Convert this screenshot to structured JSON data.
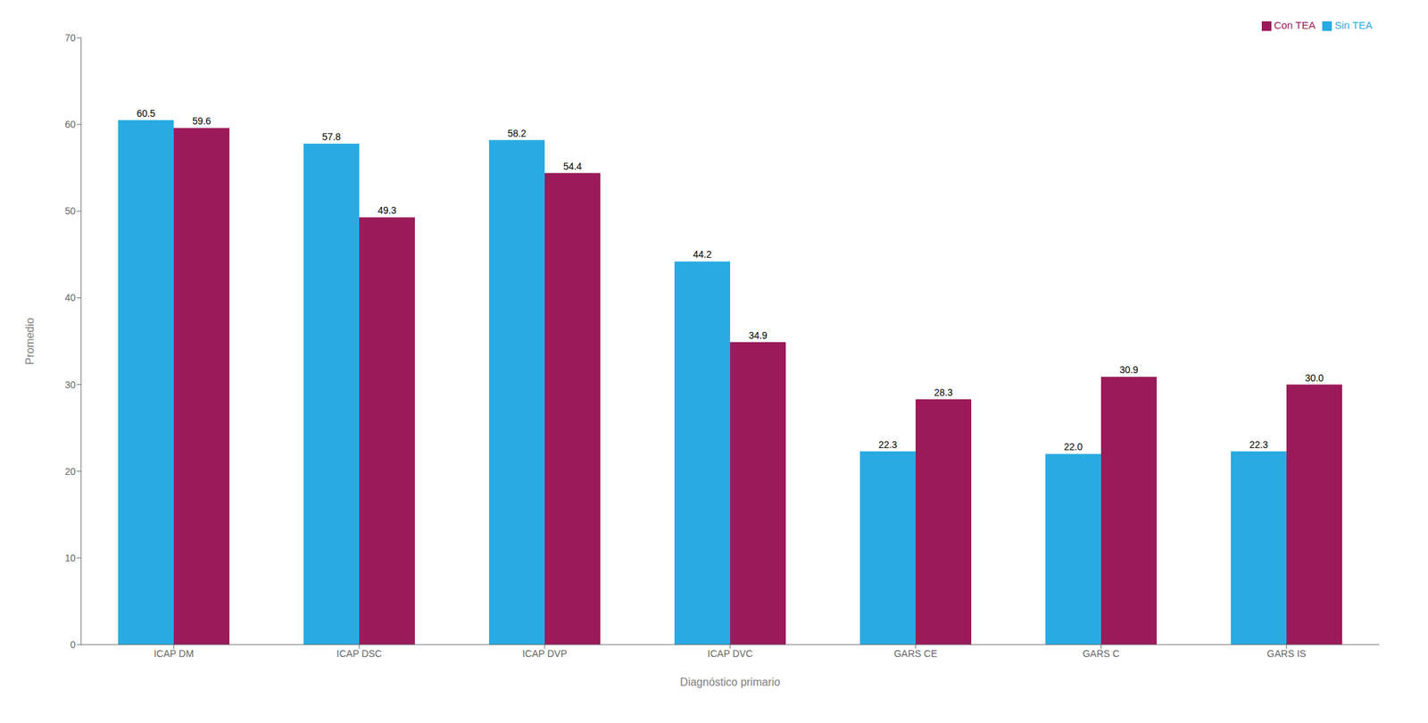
{
  "chart_data": {
    "type": "bar",
    "categories": [
      "ICAP DM",
      "ICAP DSC",
      "ICAP DVP",
      "ICAP DVC",
      "GARS CE",
      "GARS C",
      "GARS IS"
    ],
    "series": [
      {
        "name": "Sin TEA",
        "color": "#29ABE2",
        "values": [
          60.5,
          57.8,
          58.2,
          44.2,
          22.3,
          22.0,
          22.3
        ],
        "value_labels": [
          "60.5",
          "57.8",
          "58.2",
          "44.2",
          "22.3",
          "22.0",
          "22.3"
        ]
      },
      {
        "name": "Con TEA",
        "color": "#9B1B5A",
        "values": [
          59.6,
          49.3,
          54.4,
          34.9,
          28.3,
          30.9,
          30.0
        ],
        "value_labels": [
          "59.6",
          "49.3",
          "54.4",
          "34.9",
          "28.3",
          "30.9",
          "30.0"
        ]
      }
    ],
    "xlabel": "Diagnóstico primario",
    "ylabel": "Promedio",
    "ylim": [
      0,
      70
    ],
    "yticks": [
      0,
      10,
      20,
      30,
      40,
      50,
      60,
      70
    ],
    "grid": false,
    "legend": "upper right",
    "data_labels": true
  }
}
